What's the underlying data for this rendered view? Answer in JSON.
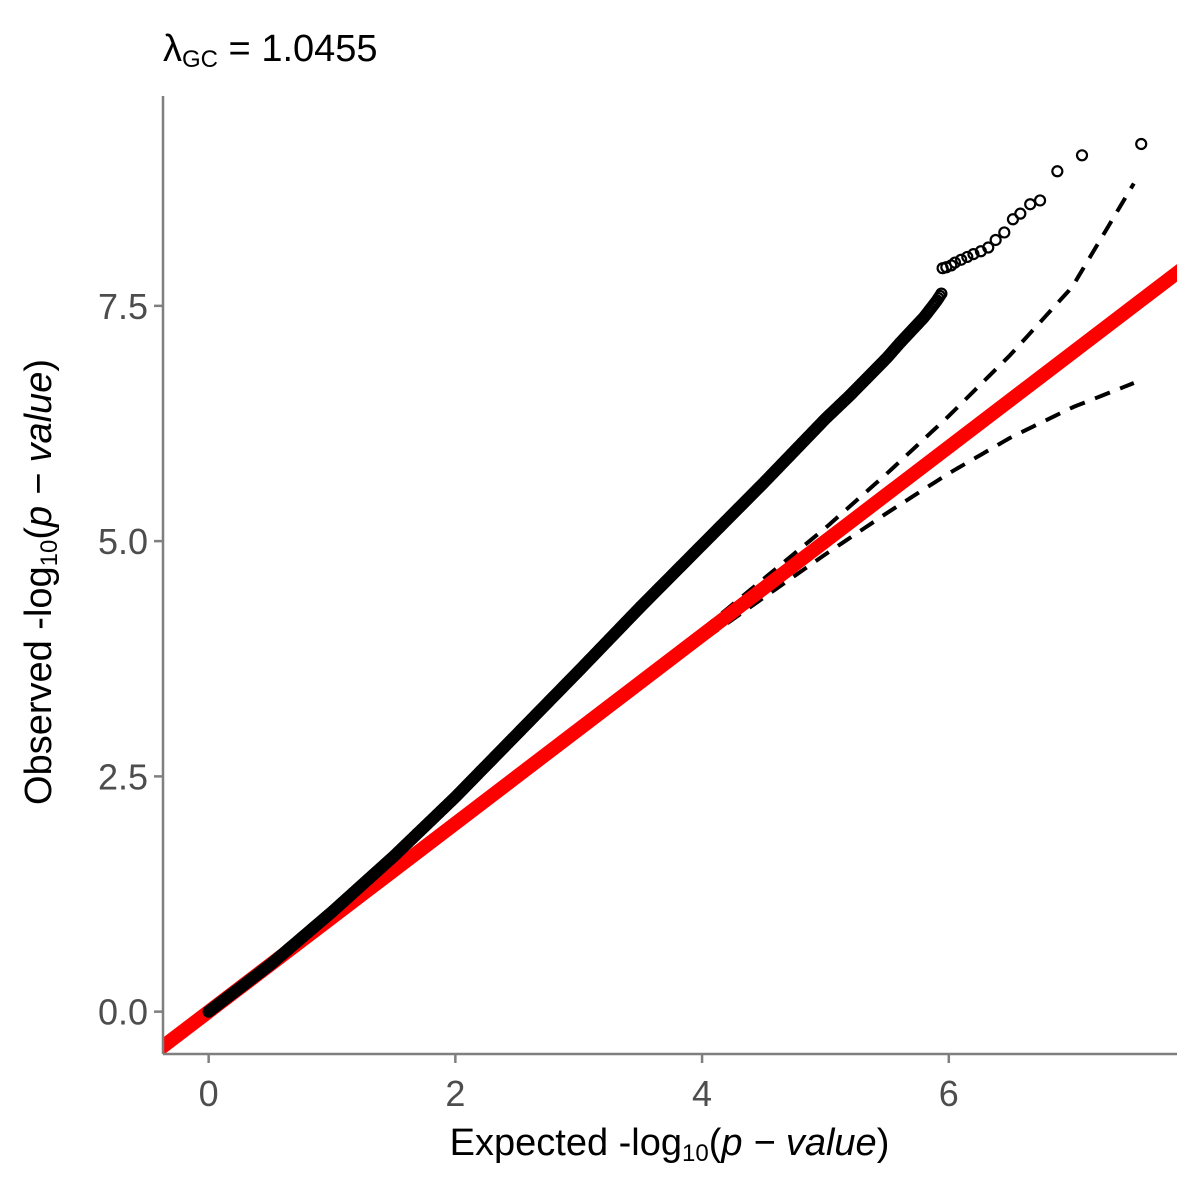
{
  "chart_data": {
    "type": "scatter",
    "title": {
      "symbol": "λ",
      "subscript": "GC",
      "operator": " = ",
      "value": "1.0455"
    },
    "xlabel": {
      "prefix": "Expected -log",
      "subscript": "10",
      "open": "(",
      "italic": "p − value",
      "close": ")"
    },
    "ylabel": {
      "prefix": "Observed -log",
      "subscript": "10",
      "open": "(",
      "italic": "p − value",
      "close": ")"
    },
    "xlim": [
      -0.37,
      7.85
    ],
    "ylim": [
      -0.45,
      9.73
    ],
    "x_ticks": [
      0,
      2,
      4,
      6
    ],
    "x_tick_labels": [
      "0",
      "2",
      "4",
      "6"
    ],
    "y_ticks": [
      0,
      2.5,
      5,
      7.5
    ],
    "y_tick_labels": [
      "0.0",
      "2.5",
      "5.0",
      "7.5"
    ],
    "grid": false,
    "legend": "none",
    "colors": {
      "points": "#000000",
      "identity_line": "#ff0000",
      "ci_band": "#000000",
      "axis": "#7f7f7f"
    },
    "reference_line": {
      "type": "identity",
      "slope": 1,
      "intercept": 0
    },
    "ci_upper": {
      "x": [
        0,
        1,
        2,
        3,
        4,
        4.5,
        5,
        5.5,
        6,
        6.5,
        7,
        7.5
      ],
      "y": [
        0.03,
        1.03,
        2.04,
        3.04,
        4.06,
        4.6,
        5.14,
        5.72,
        6.33,
        6.98,
        7.7,
        8.8
      ]
    },
    "ci_lower": {
      "x": [
        0,
        1,
        2,
        3,
        4,
        4.5,
        5,
        5.5,
        6,
        6.5,
        7,
        7.5
      ],
      "y": [
        0,
        0.97,
        1.96,
        2.96,
        3.94,
        4.4,
        4.86,
        5.3,
        5.72,
        6.1,
        6.42,
        6.68
      ]
    },
    "observed_curve": {
      "x": [
        0,
        0.5,
        1,
        1.5,
        2,
        2.5,
        3,
        3.5,
        4,
        4.5,
        5,
        5.2,
        5.5,
        5.6,
        5.8,
        5.9,
        5.95
      ],
      "y": [
        0,
        0.5,
        1.06,
        1.65,
        2.28,
        2.95,
        3.62,
        4.3,
        4.96,
        5.62,
        6.3,
        6.55,
        6.95,
        7.1,
        7.38,
        7.55,
        7.65
      ]
    },
    "tail_points": {
      "x": [
        5.95,
        5.98,
        6.02,
        6.05,
        6.1,
        6.15,
        6.2,
        6.26,
        6.32,
        6.38,
        6.45,
        6.52,
        6.58,
        6.66,
        6.74,
        6.88,
        7.08,
        7.56
      ],
      "y": [
        7.9,
        7.91,
        7.93,
        7.96,
        7.99,
        8.02,
        8.05,
        8.08,
        8.12,
        8.2,
        8.28,
        8.42,
        8.48,
        8.58,
        8.62,
        8.93,
        9.1,
        9.22
      ]
    }
  }
}
